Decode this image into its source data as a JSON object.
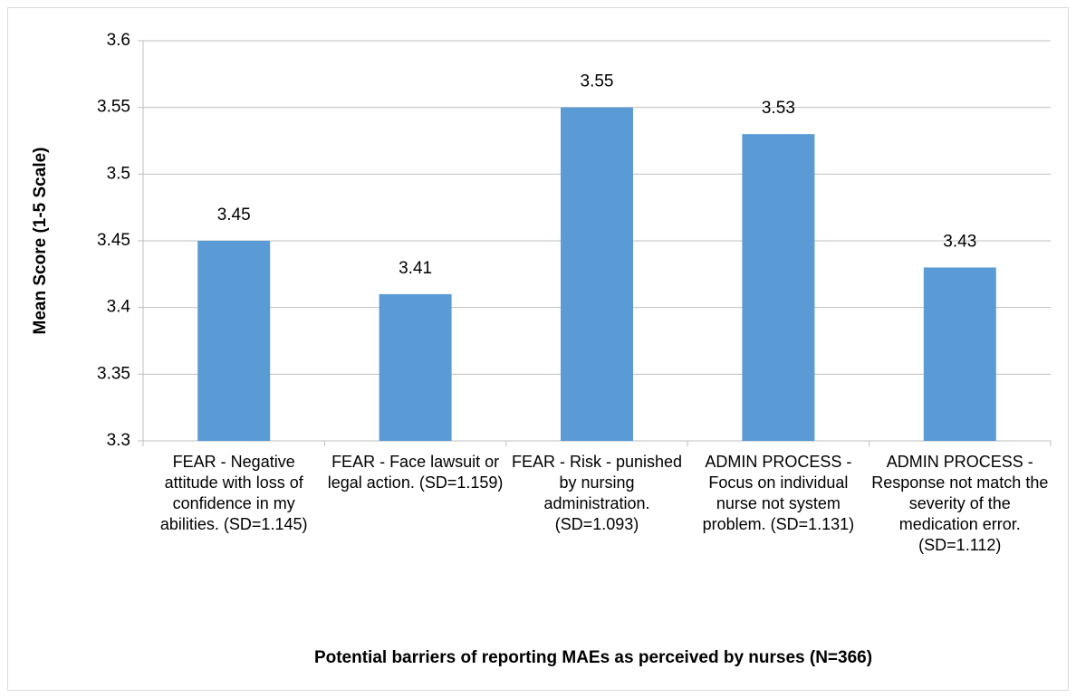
{
  "chart_data": {
    "type": "bar",
    "y_label": "Mean Score (1-5 Scale)",
    "x_label": "Potential barriers of reporting MAEs as perceived by nurses (N=366)",
    "categories": [
      "FEAR - Negative attitude with loss of confidence in my abilities. (SD=1.145)",
      "FEAR - Face lawsuit or legal action. (SD=1.159)",
      "FEAR - Risk - punished by nursing administration. (SD=1.093)",
      "ADMIN PROCESS - Focus on individual nurse not system problem. (SD=1.131)",
      "ADMIN PROCESS - Response not match the severity of the medication error. (SD=1.112)"
    ],
    "values": [
      3.45,
      3.41,
      3.55,
      3.53,
      3.43
    ],
    "color": "#5b9bd5",
    "ylim": [
      3.3,
      3.6
    ],
    "yticks": [
      3.3,
      3.35,
      3.4,
      3.45,
      3.5,
      3.55,
      3.6
    ],
    "grid": true
  }
}
